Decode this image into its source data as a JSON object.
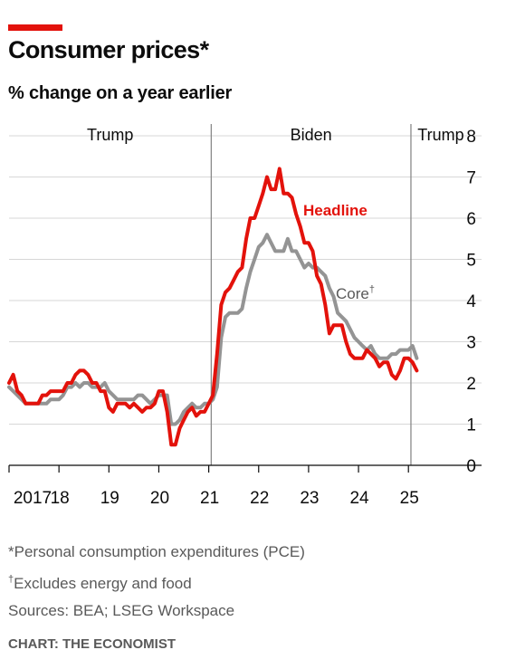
{
  "header": {
    "title": "Consumer prices*",
    "subtitle": "% change on a year earlier"
  },
  "chart_data": {
    "type": "line",
    "title": "Consumer prices*",
    "subtitle": "% change on a year earlier",
    "ylim": [
      0,
      8
    ],
    "yticks": [
      "0",
      "1",
      "2",
      "3",
      "4",
      "5",
      "6",
      "7",
      "8"
    ],
    "xlim": [
      2017.0,
      2025.25
    ],
    "xticks": [
      {
        "value": 2017.0,
        "label": "2017"
      },
      {
        "value": 2018.0,
        "label": "18"
      },
      {
        "value": 2019.0,
        "label": "19"
      },
      {
        "value": 2020.0,
        "label": "20"
      },
      {
        "value": 2021.0,
        "label": "21"
      },
      {
        "value": 2022.0,
        "label": "22"
      },
      {
        "value": 2023.0,
        "label": "23"
      },
      {
        "value": 2024.0,
        "label": "24"
      },
      {
        "value": 2025.0,
        "label": "25"
      }
    ],
    "grid": true,
    "periods": [
      {
        "label": "Trump",
        "start": 2017.0,
        "end": 2021.05
      },
      {
        "label": "Biden",
        "start": 2021.05,
        "end": 2025.05
      },
      {
        "label": "Trump",
        "start": 2025.05,
        "end": 2025.25
      }
    ],
    "series": [
      {
        "name": "Headline",
        "color": "#e3120b",
        "x": [
          2017.0,
          2017.083,
          2017.167,
          2017.25,
          2017.333,
          2017.417,
          2017.5,
          2017.583,
          2017.667,
          2017.75,
          2017.833,
          2017.917,
          2018.0,
          2018.083,
          2018.167,
          2018.25,
          2018.333,
          2018.417,
          2018.5,
          2018.583,
          2018.667,
          2018.75,
          2018.833,
          2018.917,
          2019.0,
          2019.083,
          2019.167,
          2019.25,
          2019.333,
          2019.417,
          2019.5,
          2019.583,
          2019.667,
          2019.75,
          2019.833,
          2019.917,
          2020.0,
          2020.083,
          2020.167,
          2020.25,
          2020.333,
          2020.417,
          2020.5,
          2020.583,
          2020.667,
          2020.75,
          2020.833,
          2020.917,
          2021.0,
          2021.083,
          2021.167,
          2021.25,
          2021.333,
          2021.417,
          2021.5,
          2021.583,
          2021.667,
          2021.75,
          2021.833,
          2021.917,
          2022.0,
          2022.083,
          2022.167,
          2022.25,
          2022.333,
          2022.417,
          2022.5,
          2022.583,
          2022.667,
          2022.75,
          2022.833,
          2022.917,
          2023.0,
          2023.083,
          2023.167,
          2023.25,
          2023.333,
          2023.417,
          2023.5,
          2023.583,
          2023.667,
          2023.75,
          2023.833,
          2023.917,
          2024.0,
          2024.083,
          2024.167,
          2024.25,
          2024.333,
          2024.417,
          2024.5,
          2024.583,
          2024.667,
          2024.75,
          2024.833,
          2024.917,
          2025.0,
          2025.083,
          2025.167
        ],
        "values": [
          2.0,
          2.2,
          1.8,
          1.7,
          1.5,
          1.5,
          1.5,
          1.5,
          1.7,
          1.7,
          1.8,
          1.8,
          1.8,
          1.8,
          2.0,
          2.0,
          2.2,
          2.3,
          2.3,
          2.2,
          2.0,
          2.0,
          1.8,
          1.8,
          1.4,
          1.3,
          1.5,
          1.5,
          1.5,
          1.4,
          1.5,
          1.4,
          1.3,
          1.4,
          1.4,
          1.5,
          1.8,
          1.8,
          1.3,
          0.5,
          0.5,
          0.9,
          1.1,
          1.3,
          1.4,
          1.2,
          1.3,
          1.3,
          1.5,
          1.7,
          2.7,
          3.9,
          4.2,
          4.3,
          4.5,
          4.7,
          4.8,
          5.5,
          6.0,
          6.0,
          6.3,
          6.6,
          7.0,
          6.7,
          6.7,
          7.2,
          6.6,
          6.6,
          6.5,
          6.1,
          5.8,
          5.4,
          5.4,
          5.2,
          4.6,
          4.4,
          3.9,
          3.2,
          3.4,
          3.4,
          3.4,
          3.0,
          2.7,
          2.6,
          2.6,
          2.6,
          2.8,
          2.7,
          2.6,
          2.4,
          2.5,
          2.5,
          2.2,
          2.1,
          2.3,
          2.6,
          2.6,
          2.5,
          2.3
        ]
      },
      {
        "name": "Core",
        "color": "#949494",
        "x": [
          2017.0,
          2017.083,
          2017.167,
          2017.25,
          2017.333,
          2017.417,
          2017.5,
          2017.583,
          2017.667,
          2017.75,
          2017.833,
          2017.917,
          2018.0,
          2018.083,
          2018.167,
          2018.25,
          2018.333,
          2018.417,
          2018.5,
          2018.583,
          2018.667,
          2018.75,
          2018.833,
          2018.917,
          2019.0,
          2019.083,
          2019.167,
          2019.25,
          2019.333,
          2019.417,
          2019.5,
          2019.583,
          2019.667,
          2019.75,
          2019.833,
          2019.917,
          2020.0,
          2020.083,
          2020.167,
          2020.25,
          2020.333,
          2020.417,
          2020.5,
          2020.583,
          2020.667,
          2020.75,
          2020.833,
          2020.917,
          2021.0,
          2021.083,
          2021.167,
          2021.25,
          2021.333,
          2021.417,
          2021.5,
          2021.583,
          2021.667,
          2021.75,
          2021.833,
          2021.917,
          2022.0,
          2022.083,
          2022.167,
          2022.25,
          2022.333,
          2022.417,
          2022.5,
          2022.583,
          2022.667,
          2022.75,
          2022.833,
          2022.917,
          2023.0,
          2023.083,
          2023.167,
          2023.25,
          2023.333,
          2023.417,
          2023.5,
          2023.583,
          2023.667,
          2023.75,
          2023.833,
          2023.917,
          2024.0,
          2024.083,
          2024.167,
          2024.25,
          2024.333,
          2024.417,
          2024.5,
          2024.583,
          2024.667,
          2024.75,
          2024.833,
          2024.917,
          2025.0,
          2025.083,
          2025.167
        ],
        "values": [
          1.9,
          1.8,
          1.7,
          1.6,
          1.5,
          1.5,
          1.5,
          1.5,
          1.5,
          1.5,
          1.6,
          1.6,
          1.6,
          1.7,
          1.9,
          1.9,
          2.0,
          1.9,
          2.0,
          2.0,
          1.9,
          1.9,
          1.9,
          2.0,
          1.8,
          1.7,
          1.6,
          1.6,
          1.6,
          1.6,
          1.6,
          1.7,
          1.7,
          1.6,
          1.5,
          1.6,
          1.7,
          1.7,
          1.7,
          1.0,
          1.0,
          1.1,
          1.3,
          1.4,
          1.5,
          1.4,
          1.4,
          1.5,
          1.5,
          1.6,
          1.9,
          3.1,
          3.6,
          3.7,
          3.7,
          3.7,
          3.8,
          4.3,
          4.7,
          5.0,
          5.3,
          5.4,
          5.6,
          5.4,
          5.2,
          5.2,
          5.2,
          5.5,
          5.2,
          5.2,
          5.0,
          4.8,
          4.9,
          4.8,
          4.8,
          4.7,
          4.6,
          4.3,
          4.1,
          3.7,
          3.6,
          3.5,
          3.3,
          3.1,
          3.0,
          2.9,
          2.8,
          2.9,
          2.7,
          2.6,
          2.6,
          2.6,
          2.7,
          2.7,
          2.8,
          2.8,
          2.8,
          2.9,
          2.6
        ]
      }
    ]
  },
  "labels": {
    "headline": "Headline",
    "core": "Core",
    "core_dagger": "†"
  },
  "footnotes": {
    "note1": "*Personal consumption expenditures (PCE)",
    "note2_dagger": "†",
    "note2": "Excludes energy and food",
    "sources": "Sources: BEA; LSEG Workspace"
  },
  "credit": "CHART: THE ECONOMIST"
}
